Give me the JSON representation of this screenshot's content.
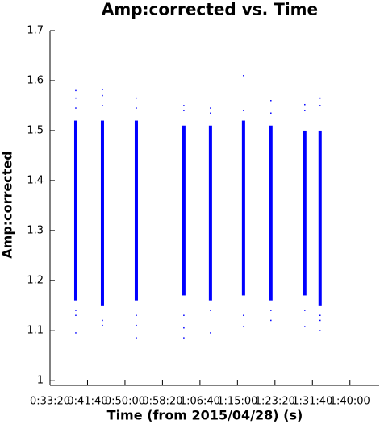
{
  "chart_data": {
    "type": "scatter",
    "title": "Amp:corrected vs. Time",
    "x_label": "Time (from 2015/04/28) (s)",
    "y_label": "Amp:corrected",
    "color": "#0000ff",
    "xlim": [
      2000,
      6390
    ],
    "ylim": [
      0.99,
      1.7
    ],
    "xticks": [
      {
        "value": 2000,
        "label": "0:33:20"
      },
      {
        "value": 2500,
        "label": "0:41:40"
      },
      {
        "value": 3000,
        "label": "0:50:00"
      },
      {
        "value": 3500,
        "label": "0:58:20"
      },
      {
        "value": 4000,
        "label": "1:06:40"
      },
      {
        "value": 4500,
        "label": "1:15:00"
      },
      {
        "value": 5000,
        "label": "1:23:20"
      },
      {
        "value": 5500,
        "label": "1:31:40"
      },
      {
        "value": 6000,
        "label": "1:40:00"
      }
    ],
    "yticks": [
      1,
      1.1,
      1.2,
      1.3,
      1.4,
      1.5,
      1.6,
      1.7
    ],
    "bands": [
      {
        "x": 2344,
        "low": 1.16,
        "high": 1.52
      },
      {
        "x": 2699,
        "low": 1.15,
        "high": 1.52
      },
      {
        "x": 3151,
        "low": 1.16,
        "high": 1.52
      },
      {
        "x": 3785,
        "low": 1.17,
        "high": 1.51
      },
      {
        "x": 4140,
        "low": 1.16,
        "high": 1.51
      },
      {
        "x": 4581,
        "low": 1.17,
        "high": 1.52
      },
      {
        "x": 4946,
        "low": 1.16,
        "high": 1.51
      },
      {
        "x": 5398,
        "low": 1.17,
        "high": 1.5
      },
      {
        "x": 5602,
        "low": 1.15,
        "high": 1.5
      }
    ],
    "points": {
      "x": [
        2344,
        2344,
        2344,
        2344,
        2344,
        2344,
        2699,
        2699,
        2699,
        2699,
        2699,
        3151,
        3151,
        3151,
        3151,
        3151,
        3785,
        3785,
        3785,
        3785,
        3785,
        4140,
        4140,
        4140,
        4140,
        4581,
        4581,
        4581,
        4581,
        4946,
        4946,
        4946,
        4946,
        5398,
        5398,
        5398,
        5398,
        5602,
        5602,
        5602,
        5602,
        5602
      ],
      "y": [
        1.58,
        1.565,
        1.545,
        1.14,
        1.13,
        1.095,
        1.582,
        1.57,
        1.55,
        1.12,
        1.11,
        1.565,
        1.545,
        1.13,
        1.11,
        1.085,
        1.55,
        1.54,
        1.13,
        1.105,
        1.085,
        1.545,
        1.535,
        1.14,
        1.095,
        1.61,
        1.54,
        1.13,
        1.108,
        1.56,
        1.535,
        1.14,
        1.12,
        1.552,
        1.54,
        1.14,
        1.108,
        1.565,
        1.55,
        1.13,
        1.12,
        1.1
      ]
    }
  }
}
